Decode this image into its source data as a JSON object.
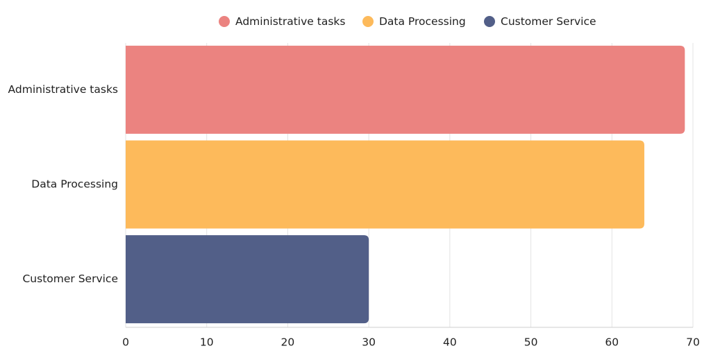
{
  "chart_data": {
    "type": "bar",
    "orientation": "horizontal",
    "categories": [
      "Administrative tasks",
      "Data Processing",
      "Customer Service"
    ],
    "values": [
      69,
      64,
      30
    ],
    "colors": [
      "#eb8380",
      "#fdba5b",
      "#525f88"
    ],
    "xlim": [
      0,
      70
    ],
    "xticks": [
      0,
      10,
      20,
      30,
      40,
      50,
      60,
      70
    ],
    "grid": "vertical",
    "legend_position": "top-center",
    "legend": [
      {
        "label": "Administrative tasks",
        "color": "#eb8380"
      },
      {
        "label": "Data Processing",
        "color": "#fdba5b"
      },
      {
        "label": "Customer Service",
        "color": "#525f88"
      }
    ]
  }
}
